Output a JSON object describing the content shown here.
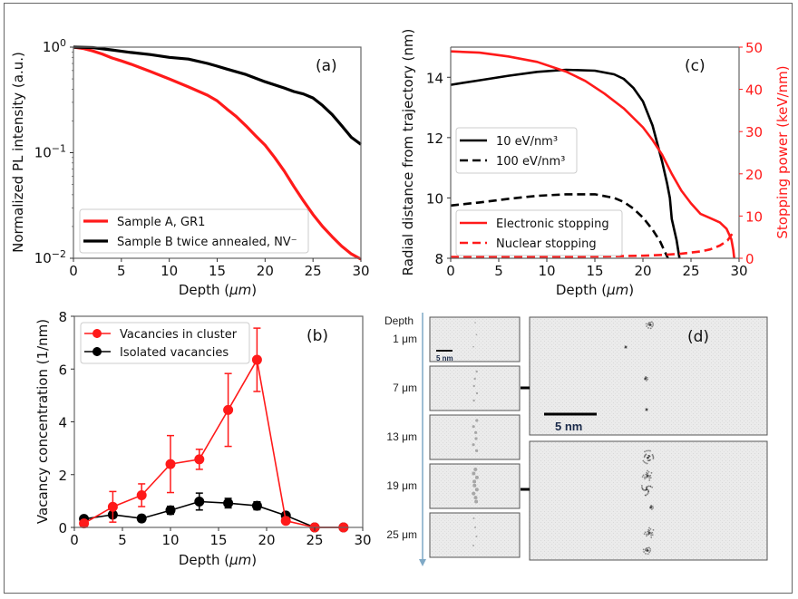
{
  "chart_data": [
    {
      "id": "a",
      "type": "line",
      "panel_label": "(a)",
      "xlabel": "Depth (μm)",
      "ylabel": "Normalized PL intensity (a.u.)",
      "xlim": [
        0,
        30
      ],
      "ylim": [
        0.01,
        1
      ],
      "yscale": "log",
      "xticks": [
        "0",
        "5",
        "10",
        "15",
        "20",
        "25",
        "30"
      ],
      "yticks": [
        {
          "value": 1,
          "label": "10^0"
        },
        {
          "value": 0.1,
          "label": "10^-1"
        },
        {
          "value": 0.01,
          "label": "10^-2"
        }
      ],
      "legend_position": "lower-left",
      "series": [
        {
          "name": "Sample A, GR1",
          "color": "#ff1a1a",
          "style": "solid",
          "x": [
            0,
            1,
            2,
            3,
            4,
            5,
            6,
            8,
            10,
            12,
            14,
            15,
            16,
            17,
            18,
            19,
            20,
            21,
            22,
            23,
            24,
            25,
            26,
            27,
            28,
            29,
            30
          ],
          "y": [
            1.0,
            0.97,
            0.92,
            0.86,
            0.79,
            0.74,
            0.69,
            0.59,
            0.5,
            0.42,
            0.35,
            0.31,
            0.26,
            0.22,
            0.18,
            0.145,
            0.118,
            0.09,
            0.067,
            0.048,
            0.035,
            0.026,
            0.02,
            0.016,
            0.013,
            0.011,
            0.0098
          ]
        },
        {
          "name": "Sample B twice annealed, NV⁻",
          "color": "#000000",
          "style": "solid",
          "x": [
            0,
            2,
            4,
            6,
            8,
            10,
            12,
            14,
            15,
            16,
            18,
            20,
            22,
            23,
            24,
            25,
            26,
            27,
            28,
            29,
            30
          ],
          "y": [
            1.0,
            0.99,
            0.94,
            0.89,
            0.85,
            0.8,
            0.77,
            0.7,
            0.66,
            0.62,
            0.55,
            0.47,
            0.41,
            0.38,
            0.36,
            0.33,
            0.28,
            0.23,
            0.18,
            0.14,
            0.12
          ]
        }
      ]
    },
    {
      "id": "b",
      "type": "line",
      "panel_label": "(b)",
      "xlabel": "Depth (μm)",
      "ylabel": "Vacancy concentration (1/nm)",
      "xlim": [
        0,
        30
      ],
      "ylim": [
        0,
        8
      ],
      "xticks": [
        "0",
        "5",
        "10",
        "15",
        "20",
        "25",
        "30"
      ],
      "yticks": [
        "0",
        "2",
        "4",
        "6",
        "8"
      ],
      "legend_position": "top-left",
      "series": [
        {
          "name": "Vacancies in cluster",
          "color": "#ff1a1a",
          "x": [
            1,
            4,
            7,
            10,
            13,
            16,
            19,
            22,
            25,
            28
          ],
          "y": [
            0.15,
            0.78,
            1.22,
            2.4,
            2.58,
            4.45,
            6.35,
            0.25,
            0.0,
            0.0
          ],
          "err": [
            0.0,
            0.58,
            0.43,
            1.08,
            0.38,
            1.38,
            1.2,
            0.0,
            0.0,
            0.0
          ]
        },
        {
          "name": "Isolated vacancies",
          "color": "#000000",
          "x": [
            1,
            4,
            7,
            10,
            13,
            16,
            19,
            22,
            25,
            28
          ],
          "y": [
            0.32,
            0.48,
            0.34,
            0.65,
            0.98,
            0.92,
            0.82,
            0.45,
            0.0,
            0.0
          ],
          "err": [
            0.0,
            0.0,
            0.12,
            0.15,
            0.32,
            0.18,
            0.15,
            0.0,
            0.0,
            0.0
          ]
        }
      ]
    },
    {
      "id": "c",
      "type": "line",
      "panel_label": "(c)",
      "xlabel": "Depth (μm)",
      "ylabel": "Radial distance from trajectory (nm)",
      "y2label": "Stopping power (keV/nm)",
      "xlim": [
        0,
        30
      ],
      "ylim": [
        8,
        15
      ],
      "y2lim": [
        0,
        50
      ],
      "xticks": [
        "0",
        "5",
        "10",
        "15",
        "20",
        "25",
        "30"
      ],
      "yticks": [
        "8",
        "10",
        "12",
        "14"
      ],
      "y2ticks": [
        "0",
        "10",
        "20",
        "30",
        "40",
        "50"
      ],
      "legend_positions": [
        "center-left",
        "lower-left"
      ],
      "series": [
        {
          "name": "10 eV/nm³",
          "color": "#000000",
          "style": "solid",
          "axis": "left",
          "x": [
            0,
            3,
            6,
            9,
            12,
            15,
            17,
            18,
            19,
            20,
            21,
            21.5,
            22,
            22.5,
            22.8,
            23.0,
            23.5,
            23.8
          ],
          "y": [
            13.75,
            13.9,
            14.05,
            14.18,
            14.25,
            14.22,
            14.1,
            13.95,
            13.65,
            13.2,
            12.4,
            11.8,
            11.2,
            10.5,
            10.0,
            9.3,
            8.6,
            8.0
          ]
        },
        {
          "name": "100 eV/nm³",
          "color": "#000000",
          "style": "dashed",
          "axis": "left",
          "x": [
            0,
            3,
            6,
            9,
            12,
            15,
            17,
            18,
            19,
            20,
            21,
            21.8,
            22.3,
            22.6
          ],
          "y": [
            9.75,
            9.85,
            9.97,
            10.07,
            10.12,
            10.12,
            10.0,
            9.87,
            9.65,
            9.35,
            8.95,
            8.55,
            8.2,
            8.0
          ]
        },
        {
          "name": "Electronic stopping",
          "color": "#ff1a1a",
          "style": "solid",
          "axis": "right",
          "x": [
            0,
            3,
            6,
            9,
            12,
            14,
            16,
            18,
            20,
            21,
            22,
            23,
            24,
            25,
            26,
            27,
            28,
            28.7,
            29.2,
            29.4,
            29.5
          ],
          "y": [
            49,
            48.7,
            47.8,
            46.5,
            44.2,
            42,
            39,
            35.5,
            31,
            28,
            24.5,
            20,
            16,
            13,
            10.5,
            9.5,
            8.5,
            7,
            4.5,
            2,
            0
          ]
        },
        {
          "name": "Nuclear stopping",
          "color": "#ff1a1a",
          "style": "dashed",
          "axis": "right",
          "x": [
            0,
            5,
            10,
            15,
            20,
            22,
            24,
            26,
            27,
            28,
            28.8,
            29.2,
            29.4
          ],
          "y": [
            0.3,
            0.3,
            0.35,
            0.4,
            0.6,
            0.8,
            1.1,
            1.6,
            2.1,
            3.0,
            4.2,
            5.5,
            6.3
          ]
        }
      ]
    }
  ],
  "panel_d": {
    "label": "(d)",
    "depth_title": "Depth",
    "rows": [
      "1 μm",
      "7 μm",
      "13 μm",
      "19 μm",
      "25 μm"
    ],
    "small_scalebar": "5 nm",
    "large_scalebar": "5 nm"
  }
}
